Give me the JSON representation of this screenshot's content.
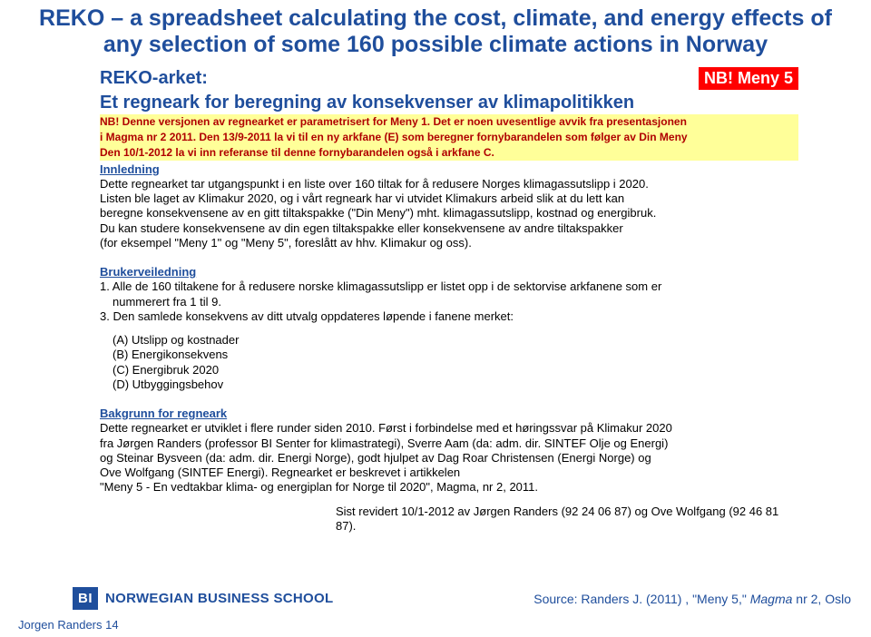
{
  "colors": {
    "brand_blue": "#1f4e9c",
    "badge_red": "#ff0000",
    "note_bg": "#ffff99",
    "note_text": "#b00000"
  },
  "title": "REKO – a spreadsheet calculating the cost, climate, and energy effects of any selection of some 160 possible climate actions in Norway",
  "doc": {
    "header_left": "REKO-arket:",
    "badge": "NB! Meny 5",
    "subtitle": "Et regneark for beregning av konsekvenser av klimapolitikken",
    "note_l1": "NB! Denne versjonen av regnearket er parametrisert for Meny 1. Det er noen uvesentlige avvik fra presentasjonen",
    "note_l2": "i Magma nr 2 2011. Den 13/9-2011 la vi til en ny arkfane (E) som beregner fornybarandelen som følger av Din Meny",
    "note_l3": "Den 10/1-2012 la vi inn referanse til denne fornybarandelen også i arkfane C.",
    "intro_head": "Innledning",
    "intro_p1": "Dette regnearket tar utgangspunkt i en liste over 160 tiltak for å redusere Norges klimagassutslipp i 2020.",
    "intro_p2": "Listen ble laget av Klimakur 2020, og i vårt regneark har vi utvidet Klimakurs arbeid slik at du lett kan",
    "intro_p3": "beregne konsekvensene av en gitt tiltakspakke (\"Din Meny\") mht. klimagassutslipp, kostnad og energibruk.",
    "intro_p4": "Du kan studere konsekvensene av din egen tiltakspakke eller konsekvensene av andre tiltakspakker",
    "intro_p5": "(for eksempel \"Meny 1\" og \"Meny 5\", foreslått av hhv. Klimakur og oss).",
    "guide_head": "Brukerveiledning",
    "guide_1a": "1. Alle de 160 tiltakene for å redusere norske klimagassutslipp er listet opp i de sektorvise arkfanene som er",
    "guide_1b": "nummerert fra 1 til 9.",
    "guide_3": "3. Den samlede konsekvens av ditt utvalg oppdateres løpende i fanene merket:",
    "tab_a": "(A) Utslipp og kostnader",
    "tab_b": "(B) Energikonsekvens",
    "tab_c": "(C) Energibruk 2020",
    "tab_d": "(D) Utbyggingsbehov",
    "bg_head": "Bakgrunn for regneark",
    "bg_p1": "Dette regnearket er utviklet i flere runder siden 2010. Først i forbindelse med et høringssvar på Klimakur 2020",
    "bg_p2": "fra Jørgen Randers (professor BI Senter for klimastrategi), Sverre Aam (da: adm. dir. SINTEF Olje og Energi)",
    "bg_p3": "og Steinar Bysveen (da: adm. dir. Energi Norge), godt hjulpet av Dag Roar Christensen (Energi Norge) og",
    "bg_p4": "Ove Wolfgang (SINTEF Energi). Regnearket er  beskrevet i artikkelen",
    "bg_p5": "\"Meny 5 - En vedtakbar klima- og energiplan for Norge til 2020\", Magma, nr 2, 2011.",
    "rev": "Sist revidert 10/1-2012 av Jørgen Randers (92 24 06 87) og Ove Wolfgang (92 46 81 87)."
  },
  "footer": {
    "logo": "BI",
    "school": "NORWEGIAN BUSINESS SCHOOL",
    "source_pre": "Source: Randers J. (2011) , \"Meny 5,\" ",
    "source_ital": "Magma",
    "source_post": " nr 2, Oslo",
    "page": "Jorgen Randers 14"
  }
}
